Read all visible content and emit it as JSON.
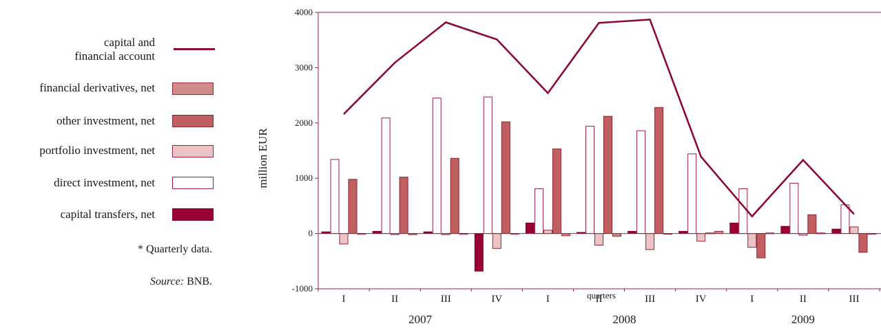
{
  "legend": {
    "items": [
      {
        "key": "account",
        "label_lines": [
          "capital and",
          "financial account"
        ],
        "kind": "line"
      },
      {
        "key": "derivatives",
        "label": "financial derivatives, net",
        "kind": "box"
      },
      {
        "key": "other",
        "label": "other investment, net",
        "kind": "box"
      },
      {
        "key": "portfolio",
        "label": "portfolio investment, net",
        "kind": "box"
      },
      {
        "key": "direct",
        "label": "direct investment, net",
        "kind": "box"
      },
      {
        "key": "transfers",
        "label": "capital transfers, net",
        "kind": "box"
      }
    ]
  },
  "notes": {
    "quarterly": "* Quarterly data.",
    "source_label": "Source:",
    "source_value": " BNB."
  },
  "chart_data": {
    "type": "bar",
    "ylabel": "million EUR",
    "xlabel": "quarters",
    "ylim": [
      -1000,
      4000
    ],
    "yticks": [
      -1000,
      0,
      1000,
      2000,
      3000,
      4000
    ],
    "categories": [
      "I",
      "II",
      "III",
      "IV",
      "I",
      "II",
      "III",
      "IV",
      "I",
      "II",
      "III"
    ],
    "years": [
      {
        "label": "2007",
        "start": 0,
        "end": 3
      },
      {
        "label": "2008",
        "start": 4,
        "end": 7
      },
      {
        "label": "2009",
        "start": 8,
        "end": 10
      }
    ],
    "series": [
      {
        "key": "transfers",
        "color": "#990033",
        "stroke": "#7a0026",
        "values": [
          30,
          40,
          30,
          -680,
          190,
          20,
          40,
          40,
          190,
          130,
          80
        ]
      },
      {
        "key": "direct",
        "color": "#ffffff",
        "stroke": "#9a2040",
        "values": [
          1340,
          2090,
          2450,
          2470,
          810,
          1940,
          1860,
          1440,
          810,
          910,
          520
        ]
      },
      {
        "key": "portfolio",
        "color": "#ecc4c4",
        "stroke": "#9a2040",
        "values": [
          -190,
          -20,
          -20,
          -270,
          60,
          -210,
          -290,
          -140,
          -250,
          -30,
          120
        ]
      },
      {
        "key": "other",
        "color": "#c06060",
        "stroke": "#8b2232",
        "values": [
          980,
          1020,
          1360,
          2020,
          1530,
          2120,
          2280,
          10,
          -440,
          340,
          -340
        ]
      },
      {
        "key": "derivatives",
        "color": "#d08c88",
        "stroke": "#9a2040",
        "values": [
          -10,
          -20,
          -10,
          -10,
          -40,
          -50,
          0,
          40,
          10,
          10,
          0
        ]
      },
      {
        "key": "account",
        "kind": "line",
        "color": "#8b0a2e",
        "values": [
          2160,
          3090,
          3820,
          3510,
          2540,
          3810,
          3870,
          1390,
          310,
          1330,
          350
        ]
      }
    ],
    "grid": false,
    "legend_position": "left"
  }
}
